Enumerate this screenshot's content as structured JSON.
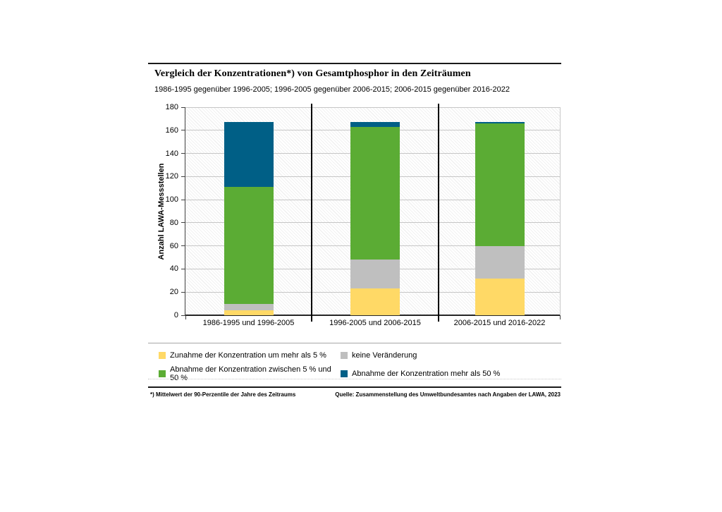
{
  "page": {
    "title": "Vergleich der Konzentrationen*) von Gesamtphosphor in den Zeiträumen",
    "subtitle": "1986-1995 gegenüber 1996-2005; 1996-2005 gegenüber 2006-2015; 2006-2015 gegenüber 2016-2022",
    "footnote_left": "*) Mittelwert der 90-Perzentile der Jahre des Zeitraums",
    "source": "Quelle: Zusammenstellung des Umweltbundesamtes nach Angaben der LAWA, 2023"
  },
  "chart_data": {
    "type": "bar",
    "stacked": true,
    "title": "Vergleich der Konzentrationen*) von Gesamtphosphor in den Zeiträumen",
    "subtitle": "1986-1995 gegenüber 1996-2005; 1996-2005 gegenüber 2006-2015; 2006-2015 gegenüber 2016-2022",
    "ylabel": "Anzahl LAWA-Messstellen",
    "xlabel": "",
    "ylim": [
      0,
      180
    ],
    "yticks": [
      0,
      20,
      40,
      60,
      80,
      100,
      120,
      140,
      160,
      180
    ],
    "grid": true,
    "legend_position": "bottom",
    "categories": [
      "1986-1995 und 1996-2005",
      "1996-2005 und 2006-2015",
      "2006-2015 und 2016-2022"
    ],
    "series": [
      {
        "key": "zunahme-mehr-5",
        "name": "Zunahme der Konzentration um mehr als 5 %",
        "color": "#FFD966",
        "values": [
          4,
          23,
          32
        ]
      },
      {
        "key": "keine-veraenderung",
        "name": "keine Veränderung",
        "color": "#BFBFBF",
        "values": [
          6,
          25,
          28
        ]
      },
      {
        "key": "abnahme-5-bis-50",
        "name": "Abnahme der Konzentration zwischen 5 % und 50 %",
        "color": "#5BAC34",
        "values": [
          101,
          115,
          106
        ]
      },
      {
        "key": "abnahme-mehr-50",
        "name": "Abnahme der Konzentration mehr als 50 %",
        "color": "#005F86",
        "values": [
          56,
          4,
          1
        ]
      }
    ],
    "totals": [
      167,
      167,
      167
    ],
    "panel_separators": true
  }
}
